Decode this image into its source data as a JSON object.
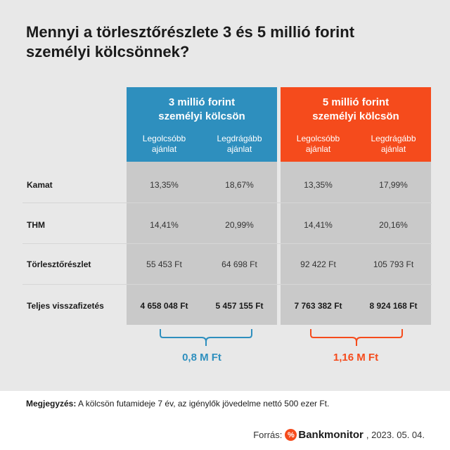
{
  "title": {
    "line1": "Mennyi a törlesztőrészlete 3 és 5 millió forint",
    "line2": "személyi kölcsönnek?"
  },
  "columns": [
    {
      "title_line1": "3 millió forint",
      "title_line2": "személyi kölcsön",
      "color": "#2e8fbe",
      "sub_left_1": "Legolcsóbb",
      "sub_left_2": "ajánlat",
      "sub_right_1": "Legdrágább",
      "sub_right_2": "ajánlat",
      "difference": "0,8 M Ft"
    },
    {
      "title_line1": "5 millió forint",
      "title_line2": "személyi kölcsön",
      "color": "#f54b1c",
      "sub_left_1": "Legolcsóbb",
      "sub_left_2": "ajánlat",
      "sub_right_1": "Legdrágább",
      "sub_right_2": "ajánlat",
      "difference": "1,16 M Ft"
    }
  ],
  "rows": [
    {
      "label": "Kamat",
      "values": [
        "13,35%",
        "18,67%",
        "13,35%",
        "17,99%"
      ]
    },
    {
      "label": "THM",
      "values": [
        "14,41%",
        "20,99%",
        "14,41%",
        "20,16%"
      ]
    },
    {
      "label": "Törlesztőrészlet",
      "values": [
        "55 453 Ft",
        "64 698 Ft",
        "92 422 Ft",
        "105 793 Ft"
      ]
    },
    {
      "label": "Teljes visszafizetés",
      "values": [
        "4 658 048 Ft",
        "5 457 155 Ft",
        "7 763 382 Ft",
        "8 924 168 Ft"
      ]
    }
  ],
  "note": {
    "label": "Megjegyzés:",
    "text": "A kölcsön futamideje 7 év, az igénylők jövedelme nettó 500 ezer Ft."
  },
  "source": {
    "label": "Forrás:",
    "logo_mark": "%",
    "brand": "Bankmonitor",
    "date": ", 2023. 05. 04."
  }
}
